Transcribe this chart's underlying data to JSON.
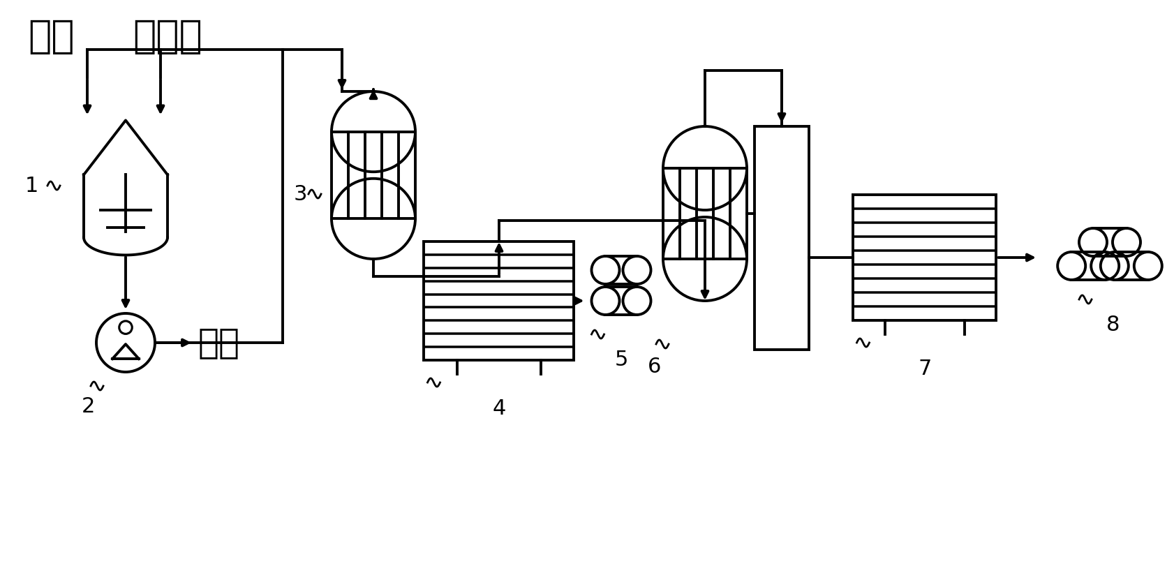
{
  "bg": "#ffffff",
  "lw": 2.8,
  "labels": {
    "waste": "废渣",
    "na_sulfate": "硫酸钙",
    "incinerate": "焪烧",
    "n1": "1",
    "n2": "2",
    "n3": "3",
    "n4": "4",
    "n5": "5",
    "n6": "6",
    "n7": "7",
    "n8": "8"
  }
}
